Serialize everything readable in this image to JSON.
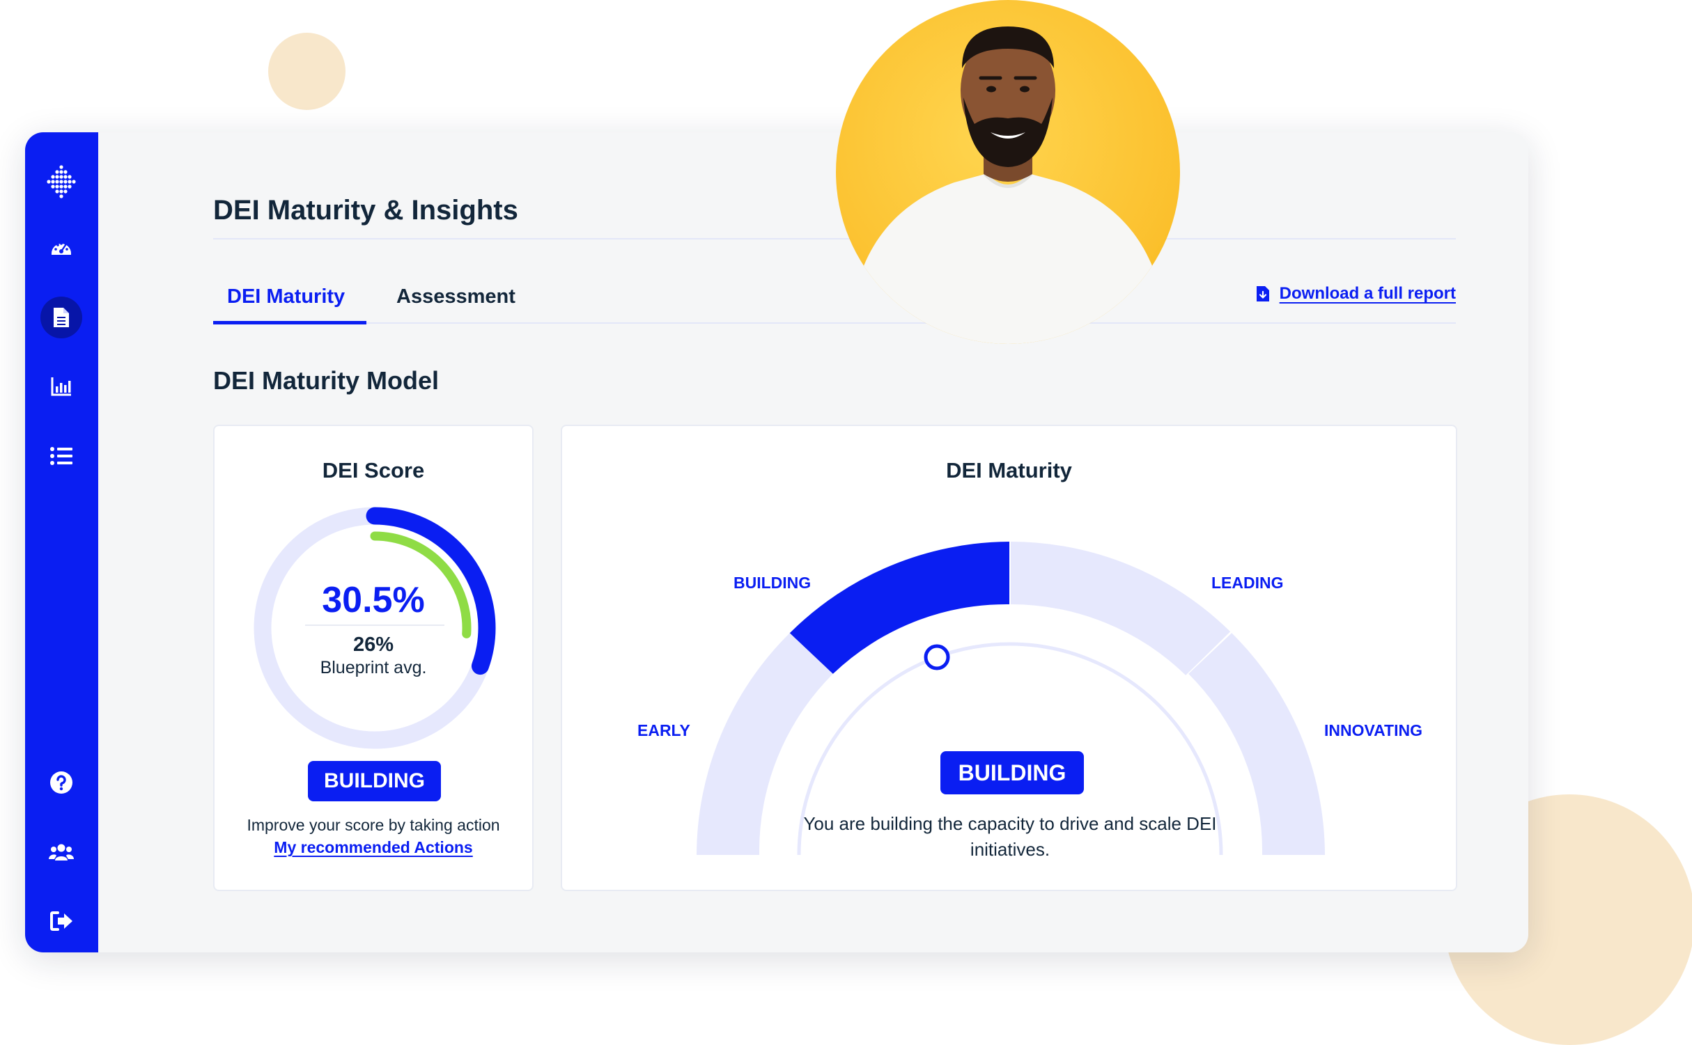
{
  "header": {
    "title": "DEI Maturity & Insights"
  },
  "tabs": [
    {
      "label": "DEI Maturity",
      "active": true
    },
    {
      "label": "Assessment",
      "active": false
    }
  ],
  "download": {
    "label": "Download a full report",
    "icon": "file-download-icon"
  },
  "section": {
    "title": "DEI Maturity Model"
  },
  "sidebar": {
    "logo": "dots-logo-icon",
    "items": [
      {
        "icon": "dashboard-gauge-icon",
        "active": false
      },
      {
        "icon": "document-icon",
        "active": true
      },
      {
        "icon": "bar-chart-icon",
        "active": false
      },
      {
        "icon": "list-icon",
        "active": false
      }
    ],
    "bottom_items": [
      {
        "icon": "help-icon"
      },
      {
        "icon": "users-icon"
      },
      {
        "icon": "logout-icon"
      }
    ]
  },
  "score_card": {
    "title": "DEI Score",
    "score": "30.5%",
    "score_fraction": 0.305,
    "avg": "26%",
    "avg_fraction": 0.26,
    "avg_label": "Blueprint avg.",
    "badge": "BUILDING",
    "improve_text": "Improve your score by taking action",
    "link": "My recommended Actions"
  },
  "maturity_card": {
    "title": "DEI Maturity",
    "stages": [
      "EARLY",
      "BUILDING",
      "LEADING",
      "INNOVATING"
    ],
    "current_stage": "BUILDING",
    "badge": "BUILDING",
    "description": "You are building the capacity to drive and scale DEI initiatives."
  },
  "colors": {
    "primary": "#0a1ef2",
    "primary_dark": "#0715a8",
    "light_track": "#e6e8fd",
    "avg_arc": "#8fdc45",
    "avatar_bg": "#fbc02d",
    "decor": "#f8e7cb",
    "text": "#12263a"
  }
}
